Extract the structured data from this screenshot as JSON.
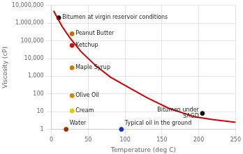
{
  "chart_data": {
    "type": "line",
    "xlabel": "Temperature (deg C)",
    "ylabel": "Viscosity (cP)",
    "log": "y",
    "grid": true,
    "xlim": [
      0,
      250
    ],
    "xticks": [
      0,
      50,
      100,
      150,
      200,
      250
    ],
    "ylim": [
      1,
      10000000
    ],
    "yticks": [
      1,
      10,
      100,
      {
        "value": 1000,
        "label": "1,000"
      },
      {
        "value": 10000,
        "label": "10,000"
      },
      {
        "value": 100000,
        "label": "100,000"
      },
      {
        "value": 1000000,
        "label": "1,000,000"
      },
      {
        "value": 10000000,
        "label": "10,000,000"
      }
    ],
    "series": [
      {
        "type": "line",
        "color": "#cc0000",
        "x": [
          3,
          8,
          15,
          25,
          40,
          60,
          80,
          100,
          130,
          160,
          195,
          220,
          250
        ],
        "values": [
          5000000,
          2000000,
          600000,
          150000,
          25000,
          4000,
          900,
          300,
          60,
          15,
          5,
          3.5,
          2.5
        ]
      }
    ],
    "annotations": [
      {
        "text": "Bitumen at virgin reservoir conditions",
        "x": 10,
        "y": 2000000,
        "color": "#111111"
      },
      {
        "text": "Peanut Butter",
        "x": 28,
        "y": 250000,
        "color": "#cc6600"
      },
      {
        "text": "Ketchup",
        "x": 28,
        "y": 55000,
        "color": "#cc1111"
      },
      {
        "text": "Maple Syrup",
        "x": 28,
        "y": 3000,
        "color": "#cc7700"
      },
      {
        "text": "Olive Oil",
        "x": 28,
        "y": 80,
        "color": "#cc8800"
      },
      {
        "text": "Cream",
        "x": 28,
        "y": 11,
        "color": "#ddcc00"
      },
      {
        "text": "Water",
        "x": 20,
        "y": 1.0,
        "color": "#993300"
      },
      {
        "text": "Typical oil in the ground",
        "x": 95,
        "y": 1.0,
        "color": "#1133cc"
      },
      {
        "text": "Bitumen under\nSAGD",
        "x": 205,
        "y": 8,
        "color": "#111111"
      }
    ]
  }
}
